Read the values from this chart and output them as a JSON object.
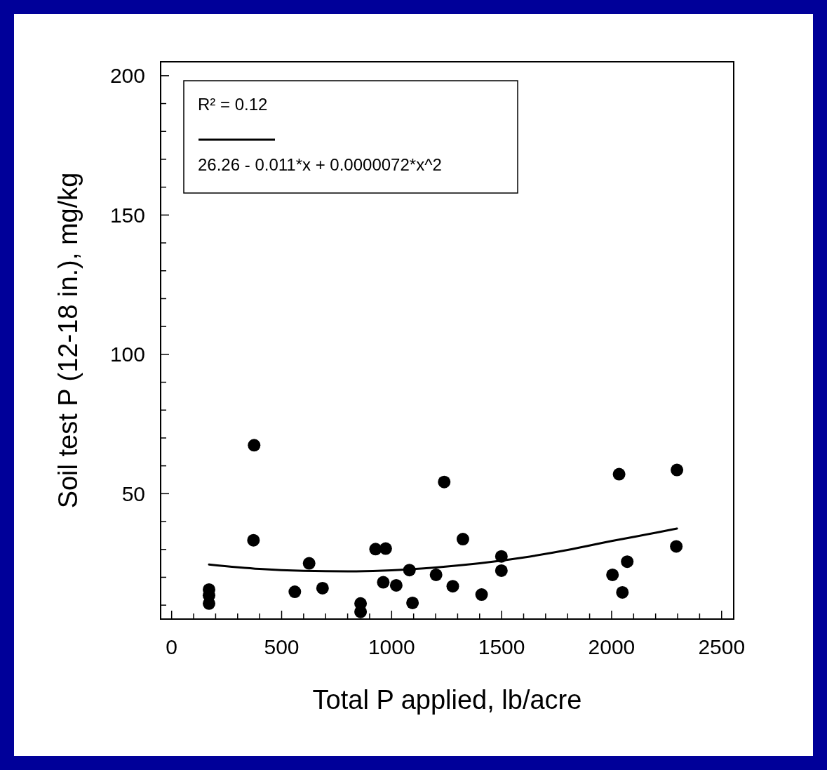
{
  "chart_data": {
    "type": "scatter",
    "xlabel": "Total P applied, lb/acre",
    "ylabel": "Soil test P (12-18 in.), mg/kg",
    "xlim": [
      -50,
      2555
    ],
    "ylim": [
      5,
      205
    ],
    "xticks": [
      0,
      {
        "value": 100,
        "label": null
      },
      {
        "value": 200,
        "label": null
      },
      {
        "value": 300,
        "label": null
      },
      {
        "value": 400,
        "label": null
      },
      500,
      {
        "value": 600,
        "label": null
      },
      {
        "value": 700,
        "label": null
      },
      {
        "value": 800,
        "label": null
      },
      {
        "value": 900,
        "label": null
      },
      1000,
      {
        "value": 1100,
        "label": null
      },
      {
        "value": 1200,
        "label": null
      },
      {
        "value": 1300,
        "label": null
      },
      {
        "value": 1400,
        "label": null
      },
      1500,
      {
        "value": 1600,
        "label": null
      },
      {
        "value": 1700,
        "label": null
      },
      {
        "value": 1800,
        "label": null
      },
      {
        "value": 1900,
        "label": null
      },
      2000,
      {
        "value": 2100,
        "label": null
      },
      {
        "value": 2200,
        "label": null
      },
      {
        "value": 2300,
        "label": null
      },
      {
        "value": 2400,
        "label": null
      },
      2500
    ],
    "yticks": [
      {
        "value": 10,
        "label": null
      },
      {
        "value": 20,
        "label": null
      },
      {
        "value": 30,
        "label": null
      },
      {
        "value": 40,
        "label": null
      },
      50,
      {
        "value": 60,
        "label": null
      },
      {
        "value": 70,
        "label": null
      },
      {
        "value": 80,
        "label": null
      },
      {
        "value": 90,
        "label": null
      },
      100,
      {
        "value": 110,
        "label": null
      },
      {
        "value": 120,
        "label": null
      },
      {
        "value": 130,
        "label": null
      },
      {
        "value": 140,
        "label": null
      },
      150,
      {
        "value": 160,
        "label": null
      },
      {
        "value": 170,
        "label": null
      },
      {
        "value": 180,
        "label": null
      },
      {
        "value": 190,
        "label": null
      },
      200
    ],
    "grid": false,
    "legend": "top left",
    "marker": "circle",
    "annotations": [
      "R² = 0.12"
    ],
    "series": [
      {
        "color": "#000000",
        "x": [
          170,
          170,
          170,
          375,
          372,
          560,
          625,
          686,
          859,
          859,
          927,
          973,
          962,
          1021,
          1081,
          1095,
          1202,
          1239,
          1278,
          1324,
          1409,
          1499,
          1499,
          2034,
          2297,
          2294,
          2071,
          2004,
          2049
        ],
        "values": [
          15.6,
          13.5,
          10.6,
          67.4,
          33.3,
          14.8,
          25,
          16.1,
          10.6,
          7.6,
          30.1,
          30.3,
          18.2,
          17.1,
          22.6,
          10.8,
          20.9,
          54.2,
          16.8,
          33.7,
          13.8,
          27.5,
          22.4,
          57,
          58.5,
          31.1,
          25.6,
          20.9,
          14.6
        ]
      },
      {
        "type": "line",
        "name": "26.26 - 0.011*x + 0.0000072*x^2",
        "color": "#000000",
        "marker": "none",
        "x": [
          170,
          400,
          600,
          800,
          1000,
          1200,
          1400,
          1600,
          1800,
          2000,
          2200,
          2297
        ],
        "values": [
          24.6,
          23.0,
          22.3,
          22.1,
          22.5,
          23.5,
          25.0,
          27.1,
          29.8,
          33.0,
          36.0,
          37.5
        ]
      }
    ]
  }
}
